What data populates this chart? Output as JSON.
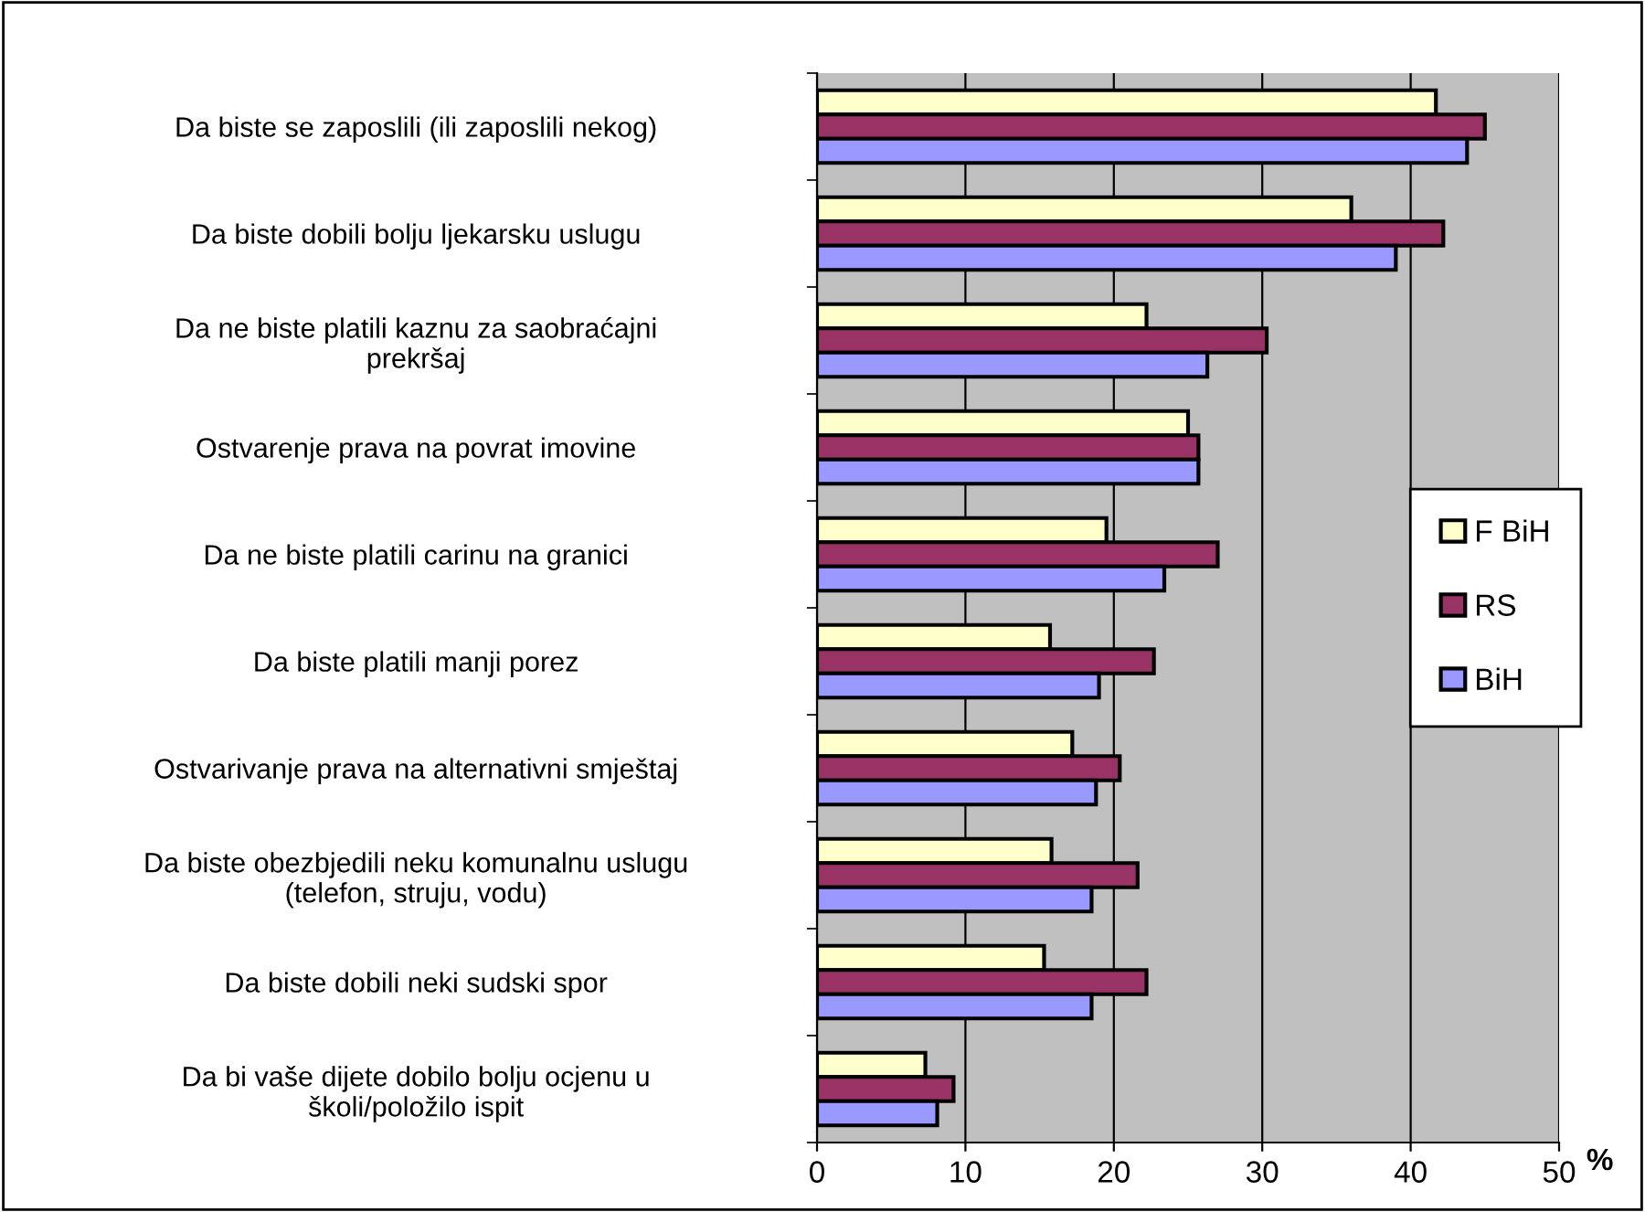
{
  "chart_data": {
    "type": "bar",
    "orientation": "horizontal",
    "xlabel": "%",
    "xlim": [
      0,
      50
    ],
    "xticks": [
      0,
      10,
      20,
      30,
      40,
      50
    ],
    "grid": "x",
    "legend": "right",
    "categories": [
      "Da biste se zaposlili (ili zaposlili nekog)",
      "Da biste dobili bolju ljekarsku uslugu",
      "Da ne biste platili kaznu za saobraćajni\nprekršaj",
      "Ostvarenje prava na povrat imovine",
      "Da ne biste platili carinu na granici",
      "Da biste platili manji porez",
      "Ostvarivanje prava na alternativni smještaj",
      "Da biste obezbjedili neku komunalnu uslugu\n(telefon, struju, vodu)",
      "Da biste dobili neki sudski spor",
      "Da bi vaše dijete dobilo bolju ocjenu u\nškoli/položilo ispit"
    ],
    "series": [
      {
        "name": "F BiH",
        "color": "#ffffcc",
        "values": [
          41.7,
          36.0,
          22.2,
          25.0,
          19.5,
          15.7,
          17.2,
          15.8,
          15.3,
          7.3
        ]
      },
      {
        "name": "RS",
        "color": "#993366",
        "values": [
          45.0,
          42.2,
          30.3,
          25.7,
          27.0,
          22.7,
          20.4,
          21.6,
          22.2,
          9.2
        ]
      },
      {
        "name": "BiH",
        "color": "#9999ff",
        "values": [
          43.8,
          39.0,
          26.3,
          25.7,
          23.4,
          19.0,
          18.8,
          18.5,
          18.5,
          8.1
        ]
      }
    ]
  }
}
